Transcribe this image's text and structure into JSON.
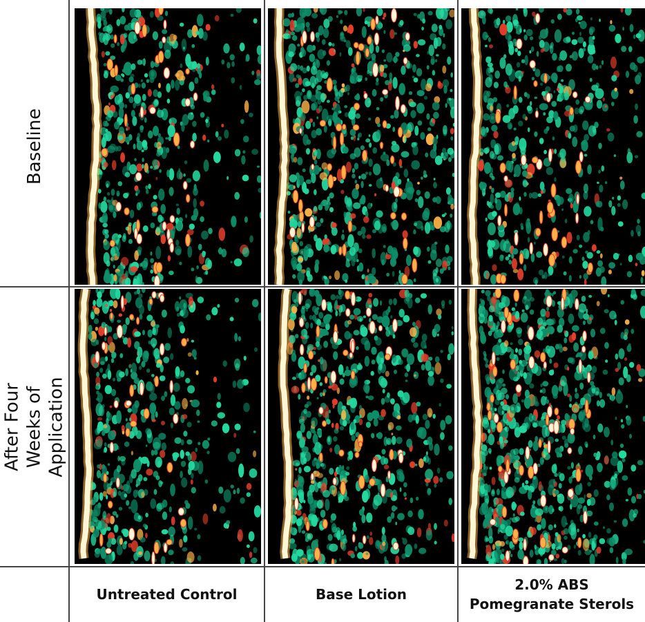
{
  "rows": [
    {
      "label": "Baseline"
    },
    {
      "label": "After Four Weeks of\nApplication"
    }
  ],
  "columns": [
    {
      "label": "Untreated Control"
    },
    {
      "label": "Base Lotion"
    },
    {
      "label": "2.0% ABS\nPomegranate Sterols"
    }
  ],
  "colors": {
    "background": "#000000",
    "low": "#0e8f6a",
    "mid": "#22d9a0",
    "high": "#e8402a",
    "peak": "#ffb347",
    "surface": "#fff6d6"
  },
  "panels": [
    {
      "id": "baseline-untreated",
      "row": 0,
      "col": 0,
      "surface_edge": "left",
      "density": "moderate"
    },
    {
      "id": "baseline-base-lotion",
      "row": 0,
      "col": 1,
      "surface_edge": "left",
      "density": "high"
    },
    {
      "id": "baseline-abs",
      "row": 0,
      "col": 2,
      "surface_edge": "left",
      "density": "moderate"
    },
    {
      "id": "after-untreated",
      "row": 1,
      "col": 0,
      "surface_edge": "left",
      "density": "moderate"
    },
    {
      "id": "after-base-lotion",
      "row": 1,
      "col": 1,
      "surface_edge": "left",
      "density": "high"
    },
    {
      "id": "after-abs",
      "row": 1,
      "col": 2,
      "surface_edge": "left",
      "density": "very-high"
    }
  ]
}
